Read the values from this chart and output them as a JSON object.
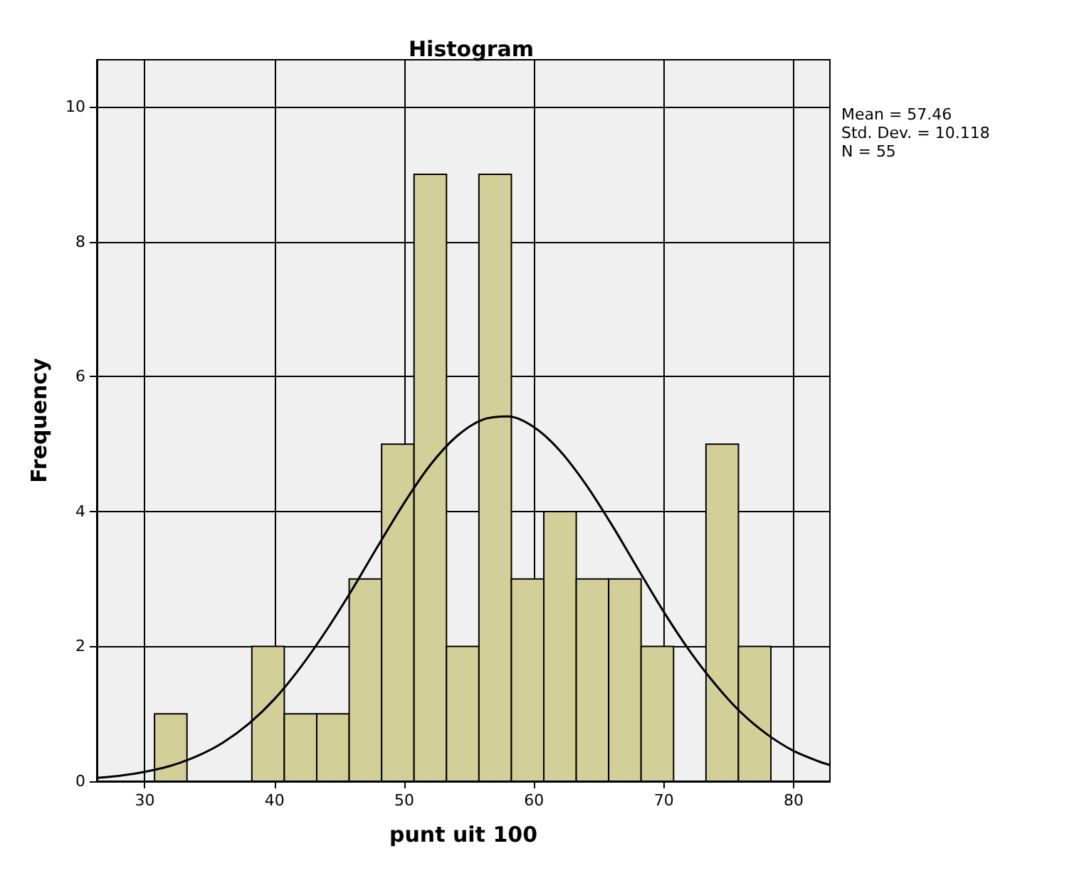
{
  "chart_data": {
    "type": "histogram",
    "title": "Histogram",
    "xlabel": "punt uit 100",
    "ylabel": "Frequency",
    "bins": [
      30.75,
      33.25,
      35.75,
      38.25,
      40.75,
      43.25,
      45.75,
      48.25,
      50.75,
      53.25,
      55.75,
      58.25,
      60.75,
      63.25,
      65.75,
      68.25,
      70.75,
      73.25,
      75.75,
      78.25
    ],
    "series": [
      {
        "color": "#d3cf99",
        "values": [
          1,
          0,
          0,
          2,
          1,
          1,
          3,
          5,
          9,
          2,
          9,
          3,
          4,
          3,
          3,
          2,
          0,
          5,
          2
        ]
      },
      {
        "type": "line",
        "color": "#000000",
        "x": [
          26.3,
          28,
          30,
          32,
          34,
          36,
          38,
          40,
          42,
          44,
          46,
          48,
          50,
          52,
          54,
          56,
          58,
          60,
          62,
          64,
          66,
          68,
          70,
          72,
          74,
          76,
          78,
          80,
          82,
          82.8
        ],
        "values": [
          0.05,
          0.08,
          0.14,
          0.23,
          0.37,
          0.57,
          0.85,
          1.22,
          1.69,
          2.24,
          2.85,
          3.5,
          4.13,
          4.69,
          5.11,
          5.36,
          5.41,
          5.25,
          4.9,
          4.4,
          3.8,
          3.15,
          2.51,
          1.93,
          1.43,
          1.01,
          0.69,
          0.45,
          0.29,
          0.24
        ]
      }
    ],
    "xlim": [
      26.3,
      82.8
    ],
    "xticks": [
      30,
      40,
      50,
      60,
      70,
      80
    ],
    "ylim": [
      0,
      10.7
    ],
    "yticks": [
      0,
      2,
      4,
      6,
      8,
      10
    ],
    "grid": true,
    "marker": "none",
    "line_style": "solid",
    "annotations": [
      "Mean = 57.46",
      "Std. Dev. = 10.118",
      "N = 55"
    ]
  }
}
